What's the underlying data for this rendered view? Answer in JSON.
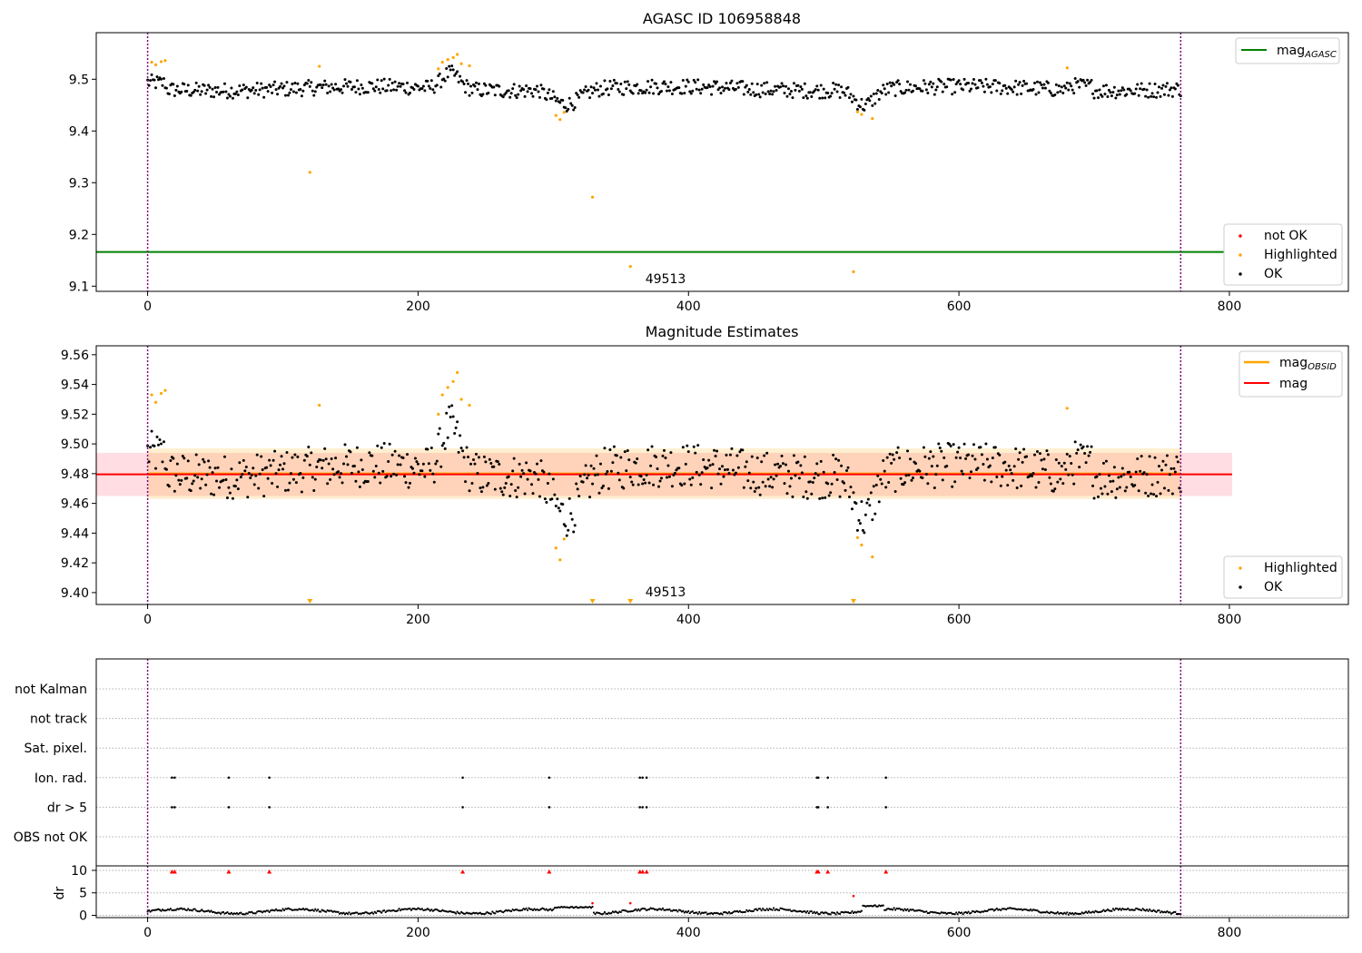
{
  "colors": {
    "ok": "#000000",
    "highlighted": "#ffa500",
    "not_ok": "#ff0000",
    "agasc_line": "#008000",
    "obsid_line": "#ffa500",
    "mag_line": "#ff0000",
    "vline": "#800080"
  },
  "chart_data": [
    {
      "type": "scatter",
      "title": "AGASC ID 106958848",
      "xlim": [
        -38,
        888
      ],
      "ylim": [
        9.09,
        9.59
      ],
      "xticks": [
        0,
        200,
        400,
        600,
        800
      ],
      "xtick_labels": [
        "0",
        "200",
        "400",
        "600",
        "800"
      ],
      "yticks": [
        9.1,
        9.2,
        9.3,
        9.4,
        9.5
      ],
      "ytick_labels": [
        "9.1",
        "9.2",
        "9.3",
        "9.4",
        "9.5"
      ],
      "vlines": [
        0,
        764
      ],
      "obsid_label": {
        "text": "49513",
        "x": 382,
        "y": 9.1
      },
      "mag_agasc": 9.166,
      "highlighted_points": [
        [
          3,
          9.533
        ],
        [
          6,
          9.528
        ],
        [
          10,
          9.534
        ],
        [
          13,
          9.536
        ],
        [
          120,
          9.32
        ],
        [
          127,
          9.525
        ],
        [
          215,
          9.52
        ],
        [
          218,
          9.533
        ],
        [
          222,
          9.538
        ],
        [
          226,
          9.542
        ],
        [
          229,
          9.548
        ],
        [
          232,
          9.53
        ],
        [
          238,
          9.526
        ],
        [
          302,
          9.43
        ],
        [
          305,
          9.422
        ],
        [
          308,
          9.436
        ],
        [
          329,
          9.272
        ],
        [
          357,
          9.138
        ],
        [
          522,
          9.128
        ],
        [
          525,
          9.437
        ],
        [
          528,
          9.432
        ],
        [
          536,
          9.424
        ],
        [
          680,
          9.522
        ]
      ],
      "legend_upper": [
        "mag_AGASC"
      ],
      "legend_lower": [
        "not OK",
        "Highlighted",
        "OK"
      ],
      "ok_series": "base"
    },
    {
      "type": "scatter",
      "title": "Magnitude Estimates",
      "xlim": [
        -38,
        888
      ],
      "ylim": [
        9.392,
        9.566
      ],
      "xticks": [
        0,
        200,
        400,
        600,
        800
      ],
      "xtick_labels": [
        "0",
        "200",
        "400",
        "600",
        "800"
      ],
      "yticks": [
        9.4,
        9.42,
        9.44,
        9.46,
        9.48,
        9.5,
        9.52,
        9.54,
        9.56
      ],
      "ytick_labels": [
        "9.40",
        "9.42",
        "9.44",
        "9.46",
        "9.48",
        "9.50",
        "9.52",
        "9.54",
        "9.56"
      ],
      "vlines": [
        0,
        764
      ],
      "obsid_label": {
        "text": "49513",
        "x": 382,
        "y": 9.396
      },
      "mag": 9.4795,
      "mag_band": [
        9.465,
        9.494
      ],
      "mag_obsid": 9.48,
      "mag_obsid_band": [
        9.463,
        9.497
      ],
      "highlighted_points": [
        [
          3,
          9.533
        ],
        [
          6,
          9.528
        ],
        [
          10,
          9.534
        ],
        [
          13,
          9.536
        ],
        [
          127,
          9.526
        ],
        [
          215,
          9.52
        ],
        [
          218,
          9.533
        ],
        [
          222,
          9.538
        ],
        [
          226,
          9.542
        ],
        [
          229,
          9.548
        ],
        [
          232,
          9.53
        ],
        [
          238,
          9.526
        ],
        [
          302,
          9.43
        ],
        [
          305,
          9.422
        ],
        [
          308,
          9.436
        ],
        [
          525,
          9.437
        ],
        [
          528,
          9.432
        ],
        [
          536,
          9.424
        ],
        [
          680,
          9.524
        ]
      ],
      "offscale_markers": [
        120,
        329,
        357,
        522
      ],
      "legend_upper": [
        "mag_OBSID",
        "mag"
      ],
      "legend_lower": [
        "Highlighted",
        "OK"
      ],
      "ok_series": "base"
    },
    {
      "type": "scatter",
      "title": "",
      "xlim": [
        -38,
        888
      ],
      "xticks": [
        0,
        200,
        400,
        600,
        800
      ],
      "xtick_labels": [
        "0",
        "200",
        "400",
        "600",
        "800"
      ],
      "vlines": [
        0,
        764
      ],
      "flag_categories": [
        "not Kalman",
        "not track",
        "Sat. pixel.",
        "Ion. rad.",
        "dr > 5",
        "OBS not OK"
      ],
      "flag_points": {
        "Ion. rad.": [
          18,
          20,
          60,
          90,
          233,
          297,
          364,
          366,
          369,
          495,
          496,
          503,
          546
        ],
        "dr > 5": [
          18,
          20,
          60,
          90,
          233,
          297,
          364,
          366,
          369,
          495,
          496,
          503,
          546
        ]
      },
      "dr_ylabel": "dr",
      "dr_ylim": [
        -0.5,
        11
      ],
      "dr_yticks": [
        0,
        5,
        10
      ],
      "dr_ytick_labels": [
        "0",
        "5",
        "10"
      ],
      "dr_clipped": [
        18,
        20,
        60,
        90,
        233,
        297,
        364,
        366,
        369,
        495,
        496,
        503,
        546
      ],
      "dr_red": [
        [
          329,
          2.7
        ],
        [
          357,
          2.7
        ],
        [
          522,
          4.3
        ]
      ]
    }
  ]
}
